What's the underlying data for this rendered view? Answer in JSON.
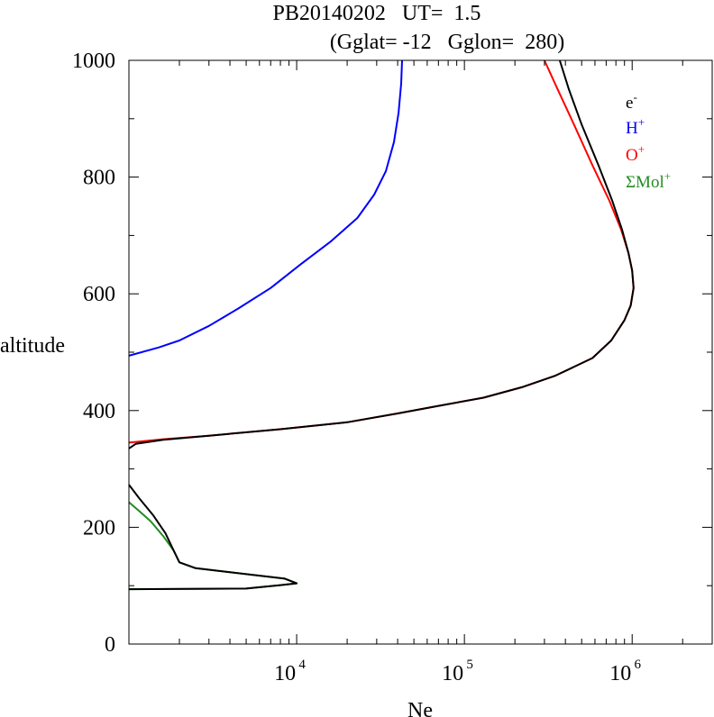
{
  "chart_data": {
    "type": "line",
    "title": "PB20140202   UT=  1.5",
    "subtitle": "(Gglat= -12   Gglon=  280)",
    "xlabel": "Ne",
    "ylabel": "altitude",
    "xscale": "log",
    "xlim": [
      1000,
      3000000
    ],
    "ylim": [
      0,
      1000
    ],
    "yticks": [
      0,
      200,
      400,
      600,
      800,
      1000
    ],
    "xticks": [
      {
        "value": 10000,
        "base": "10",
        "exp": "4"
      },
      {
        "value": 100000,
        "base": "10",
        "exp": "5"
      },
      {
        "value": 1000000,
        "base": "10",
        "exp": "6"
      }
    ],
    "legend_position": "top-right",
    "series": [
      {
        "name": "e",
        "sup": "-",
        "color": "#000000",
        "segments": [
          [
            [
              1000,
              94
            ],
            [
              5000,
              95
            ],
            [
              8000,
              101
            ],
            [
              10000,
              104
            ],
            [
              8500,
              112
            ],
            [
              2500,
              130
            ],
            [
              2000,
              140
            ],
            [
              1850,
              160
            ],
            [
              1650,
              190
            ],
            [
              1400,
              220
            ],
            [
              1150,
              250
            ],
            [
              1000,
              273
            ]
          ],
          [
            [
              1000,
              335
            ],
            [
              1100,
              343
            ],
            [
              1600,
              350
            ],
            [
              3000,
              357
            ],
            [
              8000,
              368
            ],
            [
              20000,
              380
            ],
            [
              40000,
              395
            ],
            [
              70000,
              408
            ],
            [
              130000,
              422
            ],
            [
              220000,
              440
            ],
            [
              350000,
              460
            ],
            [
              580000,
              490
            ],
            [
              750000,
              520
            ],
            [
              900000,
              555
            ],
            [
              980000,
              580
            ],
            [
              1020000,
              610
            ],
            [
              1000000,
              640
            ],
            [
              950000,
              670
            ],
            [
              870000,
              710
            ],
            [
              760000,
              760
            ],
            [
              630000,
              820
            ],
            [
              500000,
              890
            ],
            [
              420000,
              950
            ],
            [
              370000,
              1000
            ]
          ]
        ]
      },
      {
        "name": "H",
        "sup": "+",
        "color": "#0000ff",
        "segments": [
          [
            [
              1000,
              494
            ],
            [
              1500,
              508
            ],
            [
              2000,
              520
            ],
            [
              3000,
              545
            ],
            [
              4500,
              575
            ],
            [
              7000,
              610
            ],
            [
              10500,
              650
            ],
            [
              16000,
              690
            ],
            [
              23000,
              730
            ],
            [
              29000,
              770
            ],
            [
              34000,
              810
            ],
            [
              38000,
              860
            ],
            [
              40500,
              910
            ],
            [
              42000,
              960
            ],
            [
              42500,
              1000
            ]
          ]
        ]
      },
      {
        "name": "O",
        "sup": "+",
        "color": "#ff0000",
        "segments": [
          [
            [
              1000,
              345
            ],
            [
              1600,
              351
            ],
            [
              3000,
              357
            ],
            [
              8000,
              368
            ],
            [
              20000,
              380
            ],
            [
              40000,
              395
            ],
            [
              70000,
              408
            ],
            [
              130000,
              422
            ],
            [
              220000,
              440
            ],
            [
              350000,
              460
            ],
            [
              580000,
              490
            ],
            [
              750000,
              520
            ],
            [
              900000,
              555
            ],
            [
              980000,
              580
            ],
            [
              1020000,
              610
            ],
            [
              1000000,
              640
            ],
            [
              950000,
              670
            ],
            [
              860000,
              710
            ],
            [
              730000,
              760
            ],
            [
              580000,
              820
            ],
            [
              450000,
              890
            ],
            [
              360000,
              950
            ],
            [
              300000,
              1000
            ]
          ]
        ]
      },
      {
        "name": "ΣMol",
        "sup": "+",
        "color": "#228b22",
        "segments": [
          [
            [
              1000,
              94
            ],
            [
              5000,
              95
            ],
            [
              8000,
              101
            ],
            [
              10000,
              104
            ],
            [
              8500,
              112
            ],
            [
              2500,
              130
            ],
            [
              2000,
              140
            ],
            [
              1850,
              160
            ],
            [
              1600,
              185
            ],
            [
              1350,
              210
            ],
            [
              1150,
              228
            ],
            [
              1000,
              243
            ]
          ]
        ]
      }
    ]
  }
}
